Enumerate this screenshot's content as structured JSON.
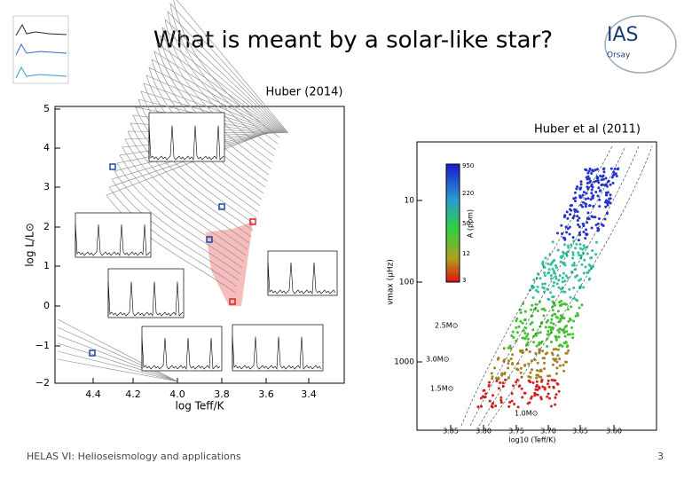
{
  "slide": {
    "title": "What is meant by a solar-like star?",
    "caption_left": "Huber (2014)",
    "caption_right": "Huber et al (2011)",
    "footer": "HELAS VI: Helioseismology and applications",
    "page_number": "3",
    "logo": "IAS",
    "logo_sub": "Orsay"
  },
  "figure_left": {
    "y_label": "log L/L⊙",
    "x_label": "log Teff/K",
    "yticks": [
      "5",
      "4",
      "3",
      "2",
      "1",
      "0",
      "−1",
      "−2"
    ],
    "xticks": [
      "4.4",
      "4.2",
      "4.0",
      "3.8",
      "3.6",
      "3.4"
    ]
  },
  "figure_right": {
    "y_label": "νmax (μHz)",
    "x_label": "log10 (Teff/K)",
    "yticks": [
      "10",
      "100",
      "1000"
    ],
    "xticks": [
      "3.85",
      "3.80",
      "3.75",
      "3.70",
      "3.65",
      "3.60"
    ],
    "colorbar_label": "A (ppm)",
    "colorbar_ticks": [
      "950",
      "220",
      "50",
      "12",
      "3"
    ],
    "tracks": [
      "2.5M⊙",
      "3.0M⊙",
      "1.5M⊙",
      "1.0M⊙"
    ]
  }
}
